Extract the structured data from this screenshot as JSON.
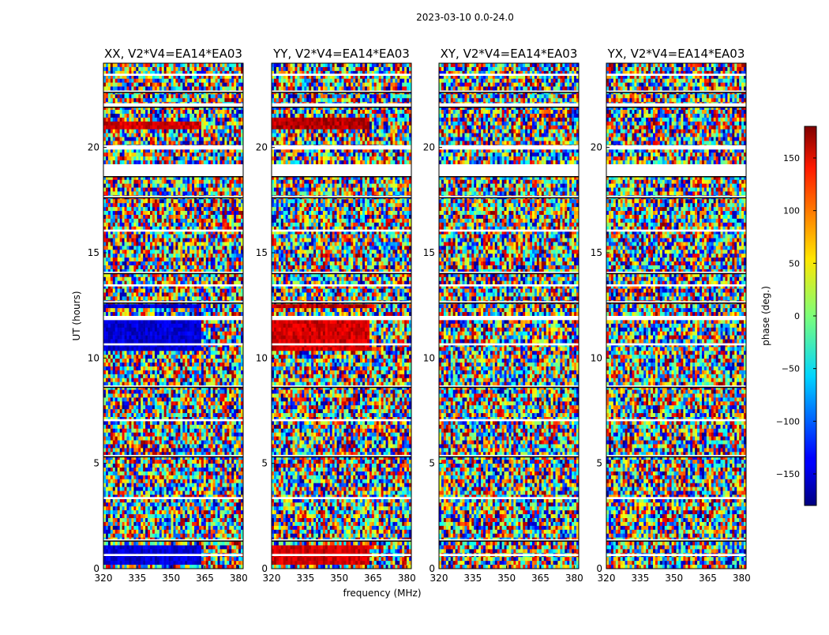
{
  "figure_title": "2023-03-10 0.0-24.0",
  "chart_data": {
    "type": "heatmap",
    "x_axis": {
      "label": "frequency (MHz)",
      "range": [
        320,
        382
      ],
      "ticks": [
        320,
        335,
        350,
        365,
        380
      ],
      "tick_labels": [
        "320",
        "335",
        "350",
        "365",
        "380"
      ]
    },
    "y_axis": {
      "label": "UT (hours)",
      "range": [
        0,
        24
      ],
      "ticks": [
        0,
        5,
        10,
        15,
        20
      ],
      "tick_labels": [
        "0",
        "5",
        "10",
        "15",
        "20"
      ]
    },
    "colorbar": {
      "label": "phase (deg.)",
      "range": [
        -180,
        180
      ],
      "ticks": [
        -150,
        -100,
        -50,
        0,
        50,
        100,
        150
      ],
      "tick_labels": [
        "−150",
        "−100",
        "−50",
        "0",
        "50",
        "100",
        "150"
      ],
      "colormap": "jet"
    },
    "panels": [
      {
        "title": "XX, V2*V4=EA14*EA03",
        "mean_phase_blocks": [
          {
            "ut_range": [
              10.4,
              11.8
            ],
            "phase_deg": -150
          },
          {
            "ut_range": [
              12.3,
              12.5
            ],
            "phase_deg": -150
          },
          {
            "ut_range": [
              0.1,
              1.2
            ],
            "phase_deg": -150
          },
          {
            "ut_range": [
              20.8,
              21.2
            ],
            "phase_deg": 150
          }
        ]
      },
      {
        "title": "YY, V2*V4=EA14*EA03",
        "mean_phase_blocks": [
          {
            "ut_range": [
              10.4,
              11.8
            ],
            "phase_deg": 150
          },
          {
            "ut_range": [
              12.3,
              12.5
            ],
            "phase_deg": 160
          },
          {
            "ut_range": [
              0.1,
              1.2
            ],
            "phase_deg": 150
          },
          {
            "ut_range": [
              20.8,
              21.5
            ],
            "phase_deg": 160
          }
        ]
      },
      {
        "title": "XY, V2*V4=EA14*EA03",
        "mean_phase_blocks": []
      },
      {
        "title": "YX, V2*V4=EA14*EA03",
        "mean_phase_blocks": []
      }
    ],
    "flagged_ut_rows": [
      [
        18.6,
        19.2
      ],
      [
        19.9,
        20.1
      ],
      [
        21.9,
        22.1
      ],
      [
        11.8,
        12.0
      ],
      [
        12.6,
        12.7
      ],
      [
        10.6,
        10.7
      ],
      [
        17.6,
        17.7
      ],
      [
        16.0,
        16.1
      ],
      [
        14.0,
        14.1
      ],
      [
        13.4,
        13.5
      ],
      [
        8.6,
        8.7
      ],
      [
        7.0,
        7.1
      ],
      [
        5.3,
        5.4
      ],
      [
        3.3,
        3.4
      ],
      [
        1.3,
        1.4
      ],
      [
        0.6,
        0.7
      ],
      [
        22.6,
        22.7
      ],
      [
        23.4,
        23.5
      ]
    ],
    "grid": false
  }
}
